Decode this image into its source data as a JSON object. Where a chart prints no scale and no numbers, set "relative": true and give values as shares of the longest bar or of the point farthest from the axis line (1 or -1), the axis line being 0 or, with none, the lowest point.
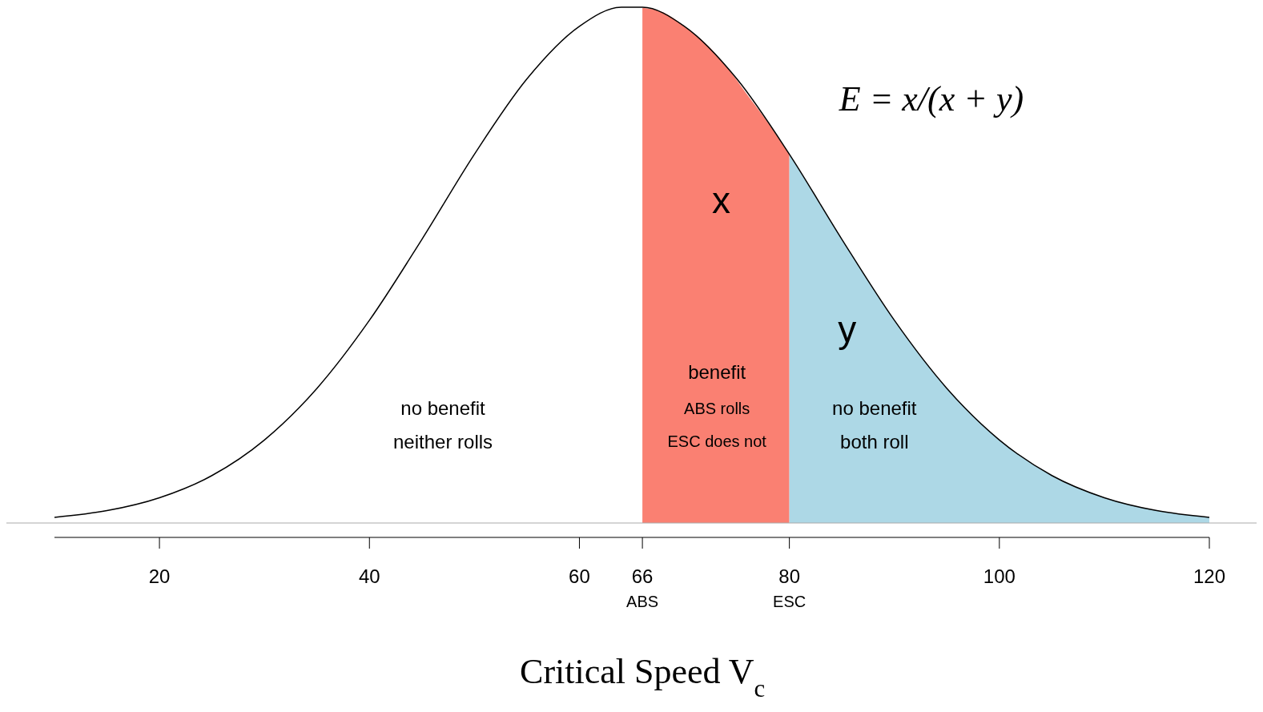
{
  "chart_data": {
    "type": "area",
    "relative": true,
    "xlabel": "Critical Speed V$_{c}$",
    "xlim": [
      10,
      120
    ],
    "xticks": [
      20,
      40,
      60,
      {
        "value": 66,
        "label": "66\nABS"
      },
      {
        "value": 80,
        "label": "80\nESC"
      },
      100,
      120
    ],
    "marker": "none",
    "line_style": "solid",
    "series": [
      {
        "color": "#fa8072",
        "x": [
          66,
          68,
          70,
          72,
          74,
          76,
          78,
          80
        ],
        "values": [
          0.999,
          0.99,
          0.963,
          0.93,
          0.885,
          0.83,
          0.775,
          0.715
        ]
      },
      {
        "color": "#add8e6",
        "x": [
          80,
          85,
          90,
          95,
          100,
          105,
          110,
          115,
          120
        ],
        "values": [
          0.715,
          0.55,
          0.393,
          0.261,
          0.161,
          0.092,
          0.049,
          0.024,
          0.011
        ]
      },
      {
        "type": "line",
        "color": "#000000",
        "x": [
          10,
          15,
          20,
          25,
          30,
          35,
          40,
          45,
          50,
          55,
          60,
          64,
          66,
          70,
          75,
          80,
          85,
          90,
          95,
          100,
          105,
          110,
          115,
          120
        ],
        "values": [
          0.011,
          0.024,
          0.049,
          0.092,
          0.161,
          0.261,
          0.393,
          0.55,
          0.715,
          0.861,
          0.963,
          1,
          1,
          0.963,
          0.861,
          0.715,
          0.55,
          0.393,
          0.261,
          0.161,
          0.092,
          0.049,
          0.024,
          0.011
        ]
      }
    ],
    "annotations": [
      "E = x/(x + y)",
      "x",
      "y",
      "benefit",
      "ABS rolls",
      "ESC does not",
      "no benefit",
      "neither rolls",
      "no benefit",
      "both roll"
    ]
  }
}
